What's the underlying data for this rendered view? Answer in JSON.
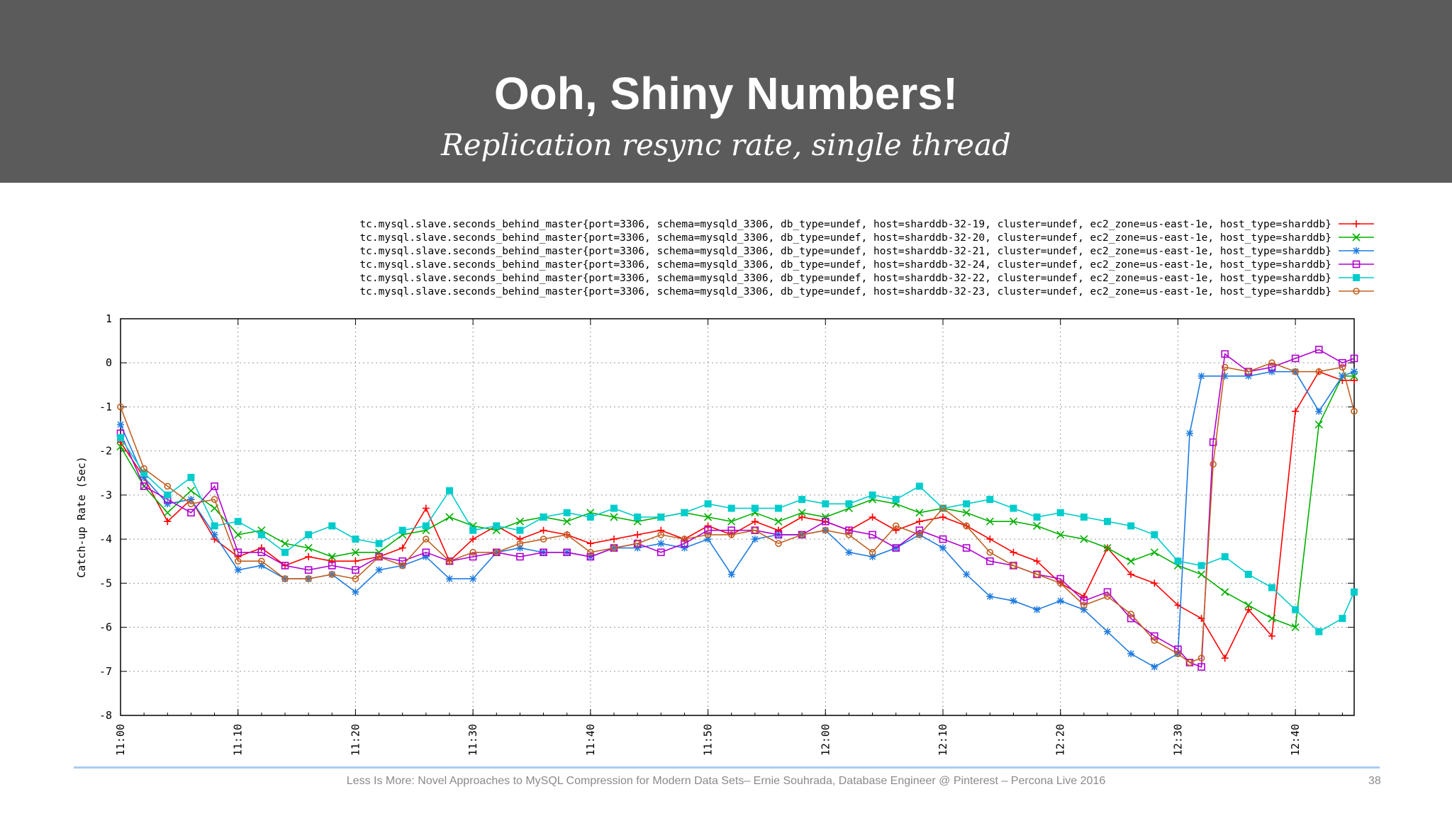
{
  "slide": {
    "title": "Ooh, Shiny Numbers!",
    "subtitle": "Replication resync rate, single thread",
    "footer": "Less Is More: Novel Approaches to MySQL Compression for Modern Data Sets– Ernie Souhrada, Database Engineer @ Pinterest – Percona Live 2016",
    "page_number": "38"
  },
  "chart_data": {
    "type": "line",
    "ylabel": "Catch-up Rate (Sec)",
    "xlabel": "",
    "ylim": [
      -8,
      1
    ],
    "xlim": [
      "11:00",
      "12:45"
    ],
    "yticks": [
      "1",
      "0",
      "-1",
      "-2",
      "-3",
      "-4",
      "-5",
      "-6",
      "-7",
      "-8"
    ],
    "xticks": [
      "11:00",
      "11:10",
      "11:20",
      "11:30",
      "11:40",
      "11:50",
      "12:00",
      "12:10",
      "12:20",
      "12:30",
      "12:40"
    ],
    "grid": true,
    "legend_position": "top",
    "series": [
      {
        "name": "tc.mysql.slave.seconds_behind_master{port=3306, schema=mysqld_3306, db_type=undef, host=sharddb-32-19, cluster=undef, ec2_zone=us-east-1e, host_type=sharddb}",
        "color": "#ff0000",
        "marker": "plus",
        "x": [
          "11:00",
          "11:02",
          "11:04",
          "11:06",
          "11:08",
          "11:10",
          "11:12",
          "11:14",
          "11:16",
          "11:18",
          "11:20",
          "11:22",
          "11:24",
          "11:26",
          "11:28",
          "11:30",
          "11:32",
          "11:34",
          "11:36",
          "11:38",
          "11:40",
          "11:42",
          "11:44",
          "11:46",
          "11:48",
          "11:50",
          "11:52",
          "11:54",
          "11:56",
          "11:58",
          "12:00",
          "12:02",
          "12:04",
          "12:06",
          "12:08",
          "12:10",
          "12:12",
          "12:14",
          "12:16",
          "12:18",
          "12:20",
          "12:22",
          "12:24",
          "12:26",
          "12:28",
          "12:30",
          "12:32",
          "12:34",
          "12:36",
          "12:38",
          "12:40",
          "12:42",
          "12:44",
          "12:45"
        ],
        "y": [
          -1.8,
          -2.6,
          -3.6,
          -3.1,
          -4.0,
          -4.4,
          -4.2,
          -4.6,
          -4.4,
          -4.5,
          -4.5,
          -4.4,
          -4.2,
          -3.3,
          -4.5,
          -4.0,
          -3.7,
          -4.0,
          -3.8,
          -3.9,
          -4.1,
          -4.0,
          -3.9,
          -3.8,
          -4.0,
          -3.7,
          -3.9,
          -3.6,
          -3.8,
          -3.5,
          -3.6,
          -3.8,
          -3.5,
          -3.8,
          -3.6,
          -3.5,
          -3.7,
          -4.0,
          -4.3,
          -4.5,
          -5.0,
          -5.3,
          -4.2,
          -4.8,
          -5.0,
          -5.5,
          -5.8,
          -6.7,
          -5.6,
          -6.2,
          -1.1,
          -0.2,
          -0.4,
          -0.4
        ]
      },
      {
        "name": "tc.mysql.slave.seconds_behind_master{port=3306, schema=mysqld_3306, db_type=undef, host=sharddb-32-20, cluster=undef, ec2_zone=us-east-1e, host_type=sharddb}",
        "color": "#00b000",
        "marker": "x",
        "x": [
          "11:00",
          "11:02",
          "11:04",
          "11:06",
          "11:08",
          "11:10",
          "11:12",
          "11:14",
          "11:16",
          "11:18",
          "11:20",
          "11:22",
          "11:24",
          "11:26",
          "11:28",
          "11:30",
          "11:32",
          "11:34",
          "11:36",
          "11:38",
          "11:40",
          "11:42",
          "11:44",
          "11:46",
          "11:48",
          "11:50",
          "11:52",
          "11:54",
          "11:56",
          "11:58",
          "12:00",
          "12:02",
          "12:04",
          "12:06",
          "12:08",
          "12:10",
          "12:12",
          "12:14",
          "12:16",
          "12:18",
          "12:20",
          "12:22",
          "12:24",
          "12:26",
          "12:28",
          "12:30",
          "12:32",
          "12:34",
          "12:36",
          "12:38",
          "12:40",
          "12:42",
          "12:44",
          "12:45"
        ],
        "y": [
          -1.9,
          -2.8,
          -3.4,
          -2.9,
          -3.3,
          -3.9,
          -3.8,
          -4.1,
          -4.2,
          -4.4,
          -4.3,
          -4.3,
          -3.9,
          -3.8,
          -3.5,
          -3.7,
          -3.8,
          -3.6,
          -3.5,
          -3.6,
          -3.4,
          -3.5,
          -3.6,
          -3.5,
          -3.4,
          -3.5,
          -3.6,
          -3.4,
          -3.6,
          -3.4,
          -3.5,
          -3.3,
          -3.1,
          -3.2,
          -3.4,
          -3.3,
          -3.4,
          -3.6,
          -3.6,
          -3.7,
          -3.9,
          -4.0,
          -4.2,
          -4.5,
          -4.3,
          -4.6,
          -4.8,
          -5.2,
          -5.5,
          -5.8,
          -6.0,
          -1.4,
          -0.3,
          -0.3
        ]
      },
      {
        "name": "tc.mysql.slave.seconds_behind_master{port=3306, schema=mysqld_3306, db_type=undef, host=sharddb-32-21, cluster=undef, ec2_zone=us-east-1e, host_type=sharddb}",
        "color": "#1e7be0",
        "marker": "star",
        "x": [
          "11:00",
          "11:02",
          "11:04",
          "11:06",
          "11:08",
          "11:10",
          "11:12",
          "11:14",
          "11:16",
          "11:18",
          "11:20",
          "11:22",
          "11:24",
          "11:26",
          "11:28",
          "11:30",
          "11:32",
          "11:34",
          "11:36",
          "11:38",
          "11:40",
          "11:42",
          "11:44",
          "11:46",
          "11:48",
          "11:50",
          "11:52",
          "11:54",
          "11:56",
          "11:58",
          "12:00",
          "12:02",
          "12:04",
          "12:06",
          "12:08",
          "12:10",
          "12:12",
          "12:14",
          "12:16",
          "12:18",
          "12:20",
          "12:22",
          "12:24",
          "12:26",
          "12:28",
          "12:30",
          "12:31",
          "12:32",
          "12:34",
          "12:36",
          "12:38",
          "12:40",
          "12:42",
          "12:44",
          "12:45"
        ],
        "y": [
          -1.4,
          -2.6,
          -3.2,
          -3.1,
          -3.9,
          -4.7,
          -4.6,
          -4.9,
          -4.9,
          -4.8,
          -5.2,
          -4.7,
          -4.6,
          -4.4,
          -4.9,
          -4.9,
          -4.3,
          -4.2,
          -4.3,
          -4.3,
          -4.4,
          -4.2,
          -4.2,
          -4.1,
          -4.2,
          -4.0,
          -4.8,
          -4.0,
          -3.9,
          -3.9,
          -3.8,
          -4.3,
          -4.4,
          -4.2,
          -3.9,
          -4.2,
          -4.8,
          -5.3,
          -5.4,
          -5.6,
          -5.4,
          -5.6,
          -6.1,
          -6.6,
          -6.9,
          -6.6,
          -1.6,
          -0.3,
          -0.3,
          -0.3,
          -0.2,
          -0.2,
          -1.1,
          -0.3,
          -0.2
        ]
      },
      {
        "name": "tc.mysql.slave.seconds_behind_master{port=3306, schema=mysqld_3306, db_type=undef, host=sharddb-32-24, cluster=undef, ec2_zone=us-east-1e, host_type=sharddb}",
        "color": "#b000d0",
        "marker": "square",
        "x": [
          "11:00",
          "11:02",
          "11:04",
          "11:06",
          "11:08",
          "11:10",
          "11:12",
          "11:14",
          "11:16",
          "11:18",
          "11:20",
          "11:22",
          "11:24",
          "11:26",
          "11:28",
          "11:30",
          "11:32",
          "11:34",
          "11:36",
          "11:38",
          "11:40",
          "11:42",
          "11:44",
          "11:46",
          "11:48",
          "11:50",
          "11:52",
          "11:54",
          "11:56",
          "11:58",
          "12:00",
          "12:02",
          "12:04",
          "12:06",
          "12:08",
          "12:10",
          "12:12",
          "12:14",
          "12:16",
          "12:18",
          "12:20",
          "12:22",
          "12:24",
          "12:26",
          "12:28",
          "12:30",
          "12:31",
          "12:32",
          "12:33",
          "12:34",
          "12:36",
          "12:38",
          "12:40",
          "12:42",
          "12:44",
          "12:45"
        ],
        "y": [
          -1.6,
          -2.8,
          -3.1,
          -3.4,
          -2.8,
          -4.3,
          -4.3,
          -4.6,
          -4.7,
          -4.6,
          -4.7,
          -4.4,
          -4.5,
          -4.3,
          -4.5,
          -4.4,
          -4.3,
          -4.4,
          -4.3,
          -4.3,
          -4.4,
          -4.2,
          -4.1,
          -4.3,
          -4.1,
          -3.8,
          -3.8,
          -3.8,
          -3.9,
          -3.9,
          -3.6,
          -3.8,
          -3.9,
          -4.2,
          -3.8,
          -4.0,
          -4.2,
          -4.5,
          -4.6,
          -4.8,
          -4.9,
          -5.4,
          -5.2,
          -5.8,
          -6.2,
          -6.5,
          -6.8,
          -6.9,
          -1.8,
          0.2,
          -0.2,
          -0.1,
          0.1,
          0.3,
          0.0,
          0.1
        ]
      },
      {
        "name": "tc.mysql.slave.seconds_behind_master{port=3306, schema=mysqld_3306, db_type=undef, host=sharddb-32-22, cluster=undef, ec2_zone=us-east-1e, host_type=sharddb}",
        "color": "#00cccc",
        "marker": "filled-square",
        "x": [
          "11:00",
          "11:02",
          "11:04",
          "11:06",
          "11:08",
          "11:10",
          "11:12",
          "11:14",
          "11:16",
          "11:18",
          "11:20",
          "11:22",
          "11:24",
          "11:26",
          "11:28",
          "11:30",
          "11:32",
          "11:34",
          "11:36",
          "11:38",
          "11:40",
          "11:42",
          "11:44",
          "11:46",
          "11:48",
          "11:50",
          "11:52",
          "11:54",
          "11:56",
          "11:58",
          "12:00",
          "12:02",
          "12:04",
          "12:06",
          "12:08",
          "12:10",
          "12:12",
          "12:14",
          "12:16",
          "12:18",
          "12:20",
          "12:22",
          "12:24",
          "12:26",
          "12:28",
          "12:30",
          "12:32",
          "12:34",
          "12:36",
          "12:38",
          "12:40",
          "12:42",
          "12:44",
          "12:45"
        ],
        "y": [
          -1.7,
          -2.5,
          -3.0,
          -2.6,
          -3.7,
          -3.6,
          -3.9,
          -4.3,
          -3.9,
          -3.7,
          -4.0,
          -4.1,
          -3.8,
          -3.7,
          -2.9,
          -3.8,
          -3.7,
          -3.8,
          -3.5,
          -3.4,
          -3.5,
          -3.3,
          -3.5,
          -3.5,
          -3.4,
          -3.2,
          -3.3,
          -3.3,
          -3.3,
          -3.1,
          -3.2,
          -3.2,
          -3.0,
          -3.1,
          -2.8,
          -3.3,
          -3.2,
          -3.1,
          -3.3,
          -3.5,
          -3.4,
          -3.5,
          -3.6,
          -3.7,
          -3.9,
          -4.5,
          -4.6,
          -4.4,
          -4.8,
          -5.1,
          -5.6,
          -6.1,
          -5.8,
          -5.2
        ]
      },
      {
        "name": "tc.mysql.slave.seconds_behind_master{port=3306, schema=mysqld_3306, db_type=undef, host=sharddb-32-23, cluster=undef, ec2_zone=us-east-1e, host_type=sharddb}",
        "color": "#c06020",
        "marker": "circle",
        "x": [
          "11:00",
          "11:02",
          "11:04",
          "11:06",
          "11:08",
          "11:10",
          "11:12",
          "11:14",
          "11:16",
          "11:18",
          "11:20",
          "11:22",
          "11:24",
          "11:26",
          "11:28",
          "11:30",
          "11:32",
          "11:34",
          "11:36",
          "11:38",
          "11:40",
          "11:42",
          "11:44",
          "11:46",
          "11:48",
          "11:50",
          "11:52",
          "11:54",
          "11:56",
          "11:58",
          "12:00",
          "12:02",
          "12:04",
          "12:06",
          "12:08",
          "12:10",
          "12:12",
          "12:14",
          "12:16",
          "12:18",
          "12:20",
          "12:22",
          "12:24",
          "12:26",
          "12:28",
          "12:30",
          "12:31",
          "12:32",
          "12:33",
          "12:34",
          "12:36",
          "12:38",
          "12:40",
          "12:42",
          "12:44",
          "12:45"
        ],
        "y": [
          -1.0,
          -2.4,
          -2.8,
          -3.2,
          -3.1,
          -4.5,
          -4.5,
          -4.9,
          -4.9,
          -4.8,
          -4.9,
          -4.4,
          -4.6,
          -4.0,
          -4.5,
          -4.3,
          -4.3,
          -4.1,
          -4.0,
          -3.9,
          -4.3,
          -4.2,
          -4.1,
          -3.9,
          -4.0,
          -3.9,
          -3.9,
          -3.8,
          -4.1,
          -3.9,
          -3.8,
          -3.9,
          -4.3,
          -3.7,
          -3.9,
          -3.3,
          -3.7,
          -4.3,
          -4.6,
          -4.8,
          -5.0,
          -5.5,
          -5.3,
          -5.7,
          -6.3,
          -6.6,
          -6.8,
          -6.7,
          -2.3,
          -0.1,
          -0.2,
          0.0,
          -0.2,
          -0.2,
          -0.1,
          -1.1
        ]
      }
    ]
  }
}
